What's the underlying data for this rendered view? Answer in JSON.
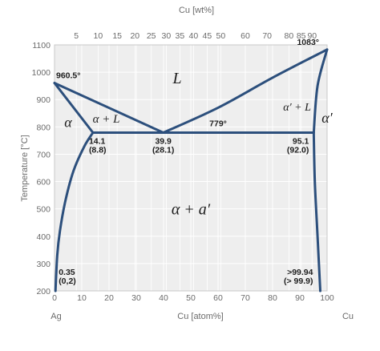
{
  "chart_data": {
    "type": "line",
    "title": "",
    "x_bottom": {
      "label": "Cu [atom%]",
      "ticks": [
        0,
        10,
        20,
        30,
        40,
        50,
        60,
        70,
        80,
        90,
        100
      ],
      "range": [
        0,
        100
      ],
      "end_labels": {
        "left": "Ag",
        "right": "Cu"
      }
    },
    "x_top": {
      "label": "Cu [wt%]",
      "ticks": [
        {
          "text": "5",
          "atom": 8
        },
        {
          "text": "10",
          "atom": 16
        },
        {
          "text": "15",
          "atom": 23
        },
        {
          "text": "20",
          "atom": 29.5
        },
        {
          "text": "25",
          "atom": 35.5
        },
        {
          "text": "30",
          "atom": 41
        },
        {
          "text": "35",
          "atom": 46
        },
        {
          "text": "40",
          "atom": 51
        },
        {
          "text": "45",
          "atom": 56
        },
        {
          "text": "50",
          "atom": 61
        },
        {
          "text": "60",
          "atom": 70
        },
        {
          "text": "70",
          "atom": 78
        },
        {
          "text": "80",
          "atom": 86
        },
        {
          "text": "85",
          "atom": 90.5
        },
        {
          "text": "90",
          "atom": 94.5
        }
      ]
    },
    "y": {
      "label": "Temperature [°C]",
      "ticks": [
        200,
        300,
        400,
        500,
        600,
        700,
        800,
        900,
        1000,
        1100
      ],
      "range": [
        200,
        1100
      ]
    },
    "grid": true,
    "line_color": "#2c4f7c",
    "curves": [
      {
        "name": "liquidus-ag-side",
        "points": [
          [
            0,
            960.5
          ],
          [
            39.9,
            779
          ]
        ]
      },
      {
        "name": "solidus-ag-side",
        "points": [
          [
            0,
            960.5
          ],
          [
            14.1,
            779
          ]
        ]
      },
      {
        "name": "liquidus-cu-side",
        "points": [
          [
            39.9,
            779
          ],
          [
            60,
            870
          ],
          [
            80,
            980
          ],
          [
            100,
            1083
          ]
        ]
      },
      {
        "name": "solidus-cu-side",
        "points": [
          [
            95.1,
            779
          ],
          [
            96.5,
            950
          ],
          [
            100,
            1083
          ]
        ]
      },
      {
        "name": "eutectic-line",
        "points": [
          [
            14.1,
            779
          ],
          [
            95.1,
            779
          ]
        ]
      },
      {
        "name": "solvus-ag-side",
        "points": [
          [
            14.1,
            779
          ],
          [
            11,
            730
          ],
          [
            7,
            640
          ],
          [
            4,
            530
          ],
          [
            2,
            420
          ],
          [
            1,
            330
          ],
          [
            0.35,
            200
          ]
        ]
      },
      {
        "name": "solvus-cu-side",
        "points": [
          [
            95.1,
            779
          ],
          [
            95.5,
            600
          ],
          [
            96.5,
            400
          ],
          [
            97.5,
            200
          ]
        ]
      }
    ],
    "annotations": [
      {
        "text": "960.5°",
        "x": 0,
        "y": 960.5
      },
      {
        "text": "1083°",
        "x": 100,
        "y": 1083
      },
      {
        "text": "779°",
        "x": 60,
        "y": 779
      },
      {
        "text": "14.1",
        "x": 14.1,
        "y": 779
      },
      {
        "text": "(8.8)",
        "x": 14.1,
        "y": 779
      },
      {
        "text": "39.9",
        "x": 39.9,
        "y": 779
      },
      {
        "text": "(28.1)",
        "x": 39.9,
        "y": 779
      },
      {
        "text": "95.1",
        "x": 95.1,
        "y": 779
      },
      {
        "text": "(92.0)",
        "x": 95.1,
        "y": 779
      },
      {
        "text": "0.35",
        "x": 0.35,
        "y": 200
      },
      {
        "text": "(0,2)",
        "x": 0.35,
        "y": 200
      },
      {
        "text": ">99.94",
        "x": 97.5,
        "y": 200
      },
      {
        "text": "(> 99.9)",
        "x": 97.5,
        "y": 200
      }
    ],
    "regions": [
      {
        "text": "L",
        "x": 45,
        "y": 960
      },
      {
        "text": "α + L",
        "x": 19,
        "y": 815
      },
      {
        "text": "α",
        "x": 5,
        "y": 800
      },
      {
        "text": "α′ + L",
        "x": 89,
        "y": 860
      },
      {
        "text": "α′",
        "x": 100,
        "y": 815
      },
      {
        "text": "α + a′",
        "x": 50,
        "y": 480
      }
    ]
  }
}
